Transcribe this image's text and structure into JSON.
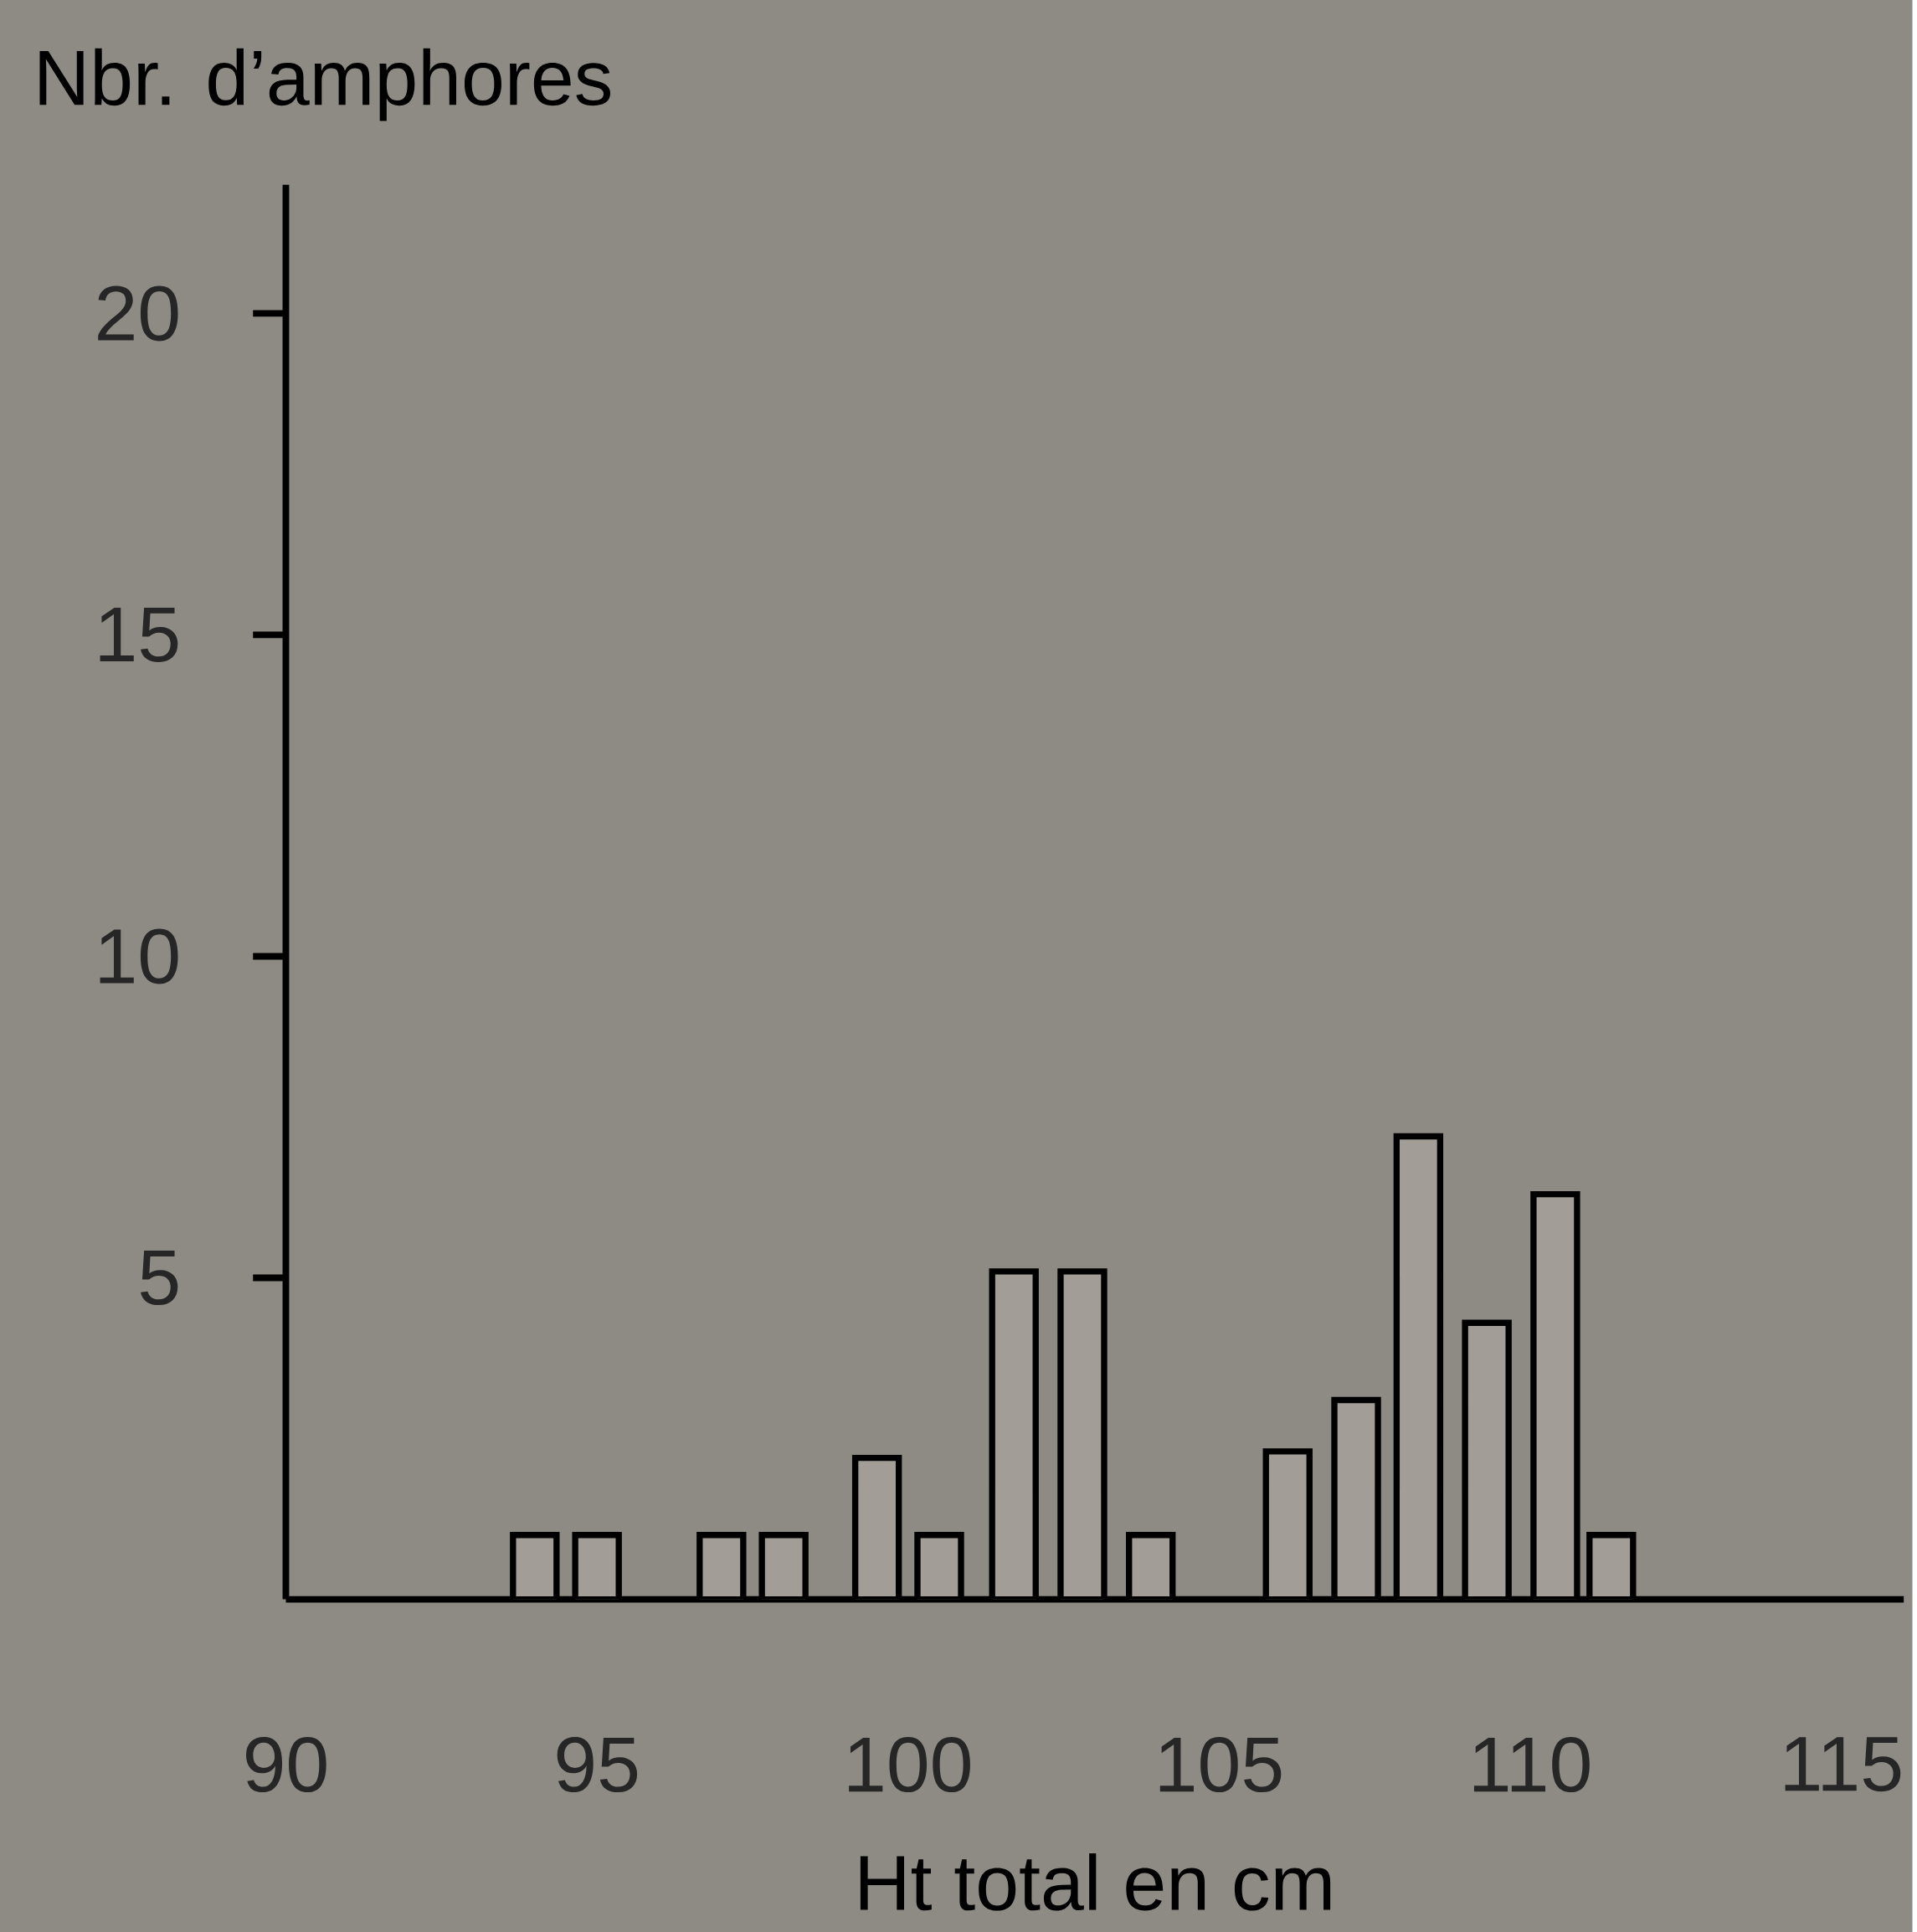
{
  "chart_data": {
    "type": "bar",
    "xlabel": "Ht total en cm",
    "ylabel": "Nbr. d’amphores",
    "x": [
      94,
      95,
      97,
      98,
      99.5,
      100.5,
      101.7,
      102.8,
      103.9,
      106.1,
      107.2,
      108.2,
      109.3,
      110.4,
      111.3
    ],
    "values": [
      1,
      1,
      1,
      1,
      2.2,
      1,
      5.1,
      5.1,
      1,
      2.3,
      3.1,
      7.2,
      4.3,
      6.3,
      1
    ],
    "color": "#a29e97",
    "xlim": [
      90,
      116
    ],
    "ylim": [
      0,
      22
    ],
    "xticks": [
      90,
      95,
      100,
      105,
      110,
      115
    ],
    "yticks": [
      5,
      10,
      15,
      20
    ],
    "grid": false
  }
}
